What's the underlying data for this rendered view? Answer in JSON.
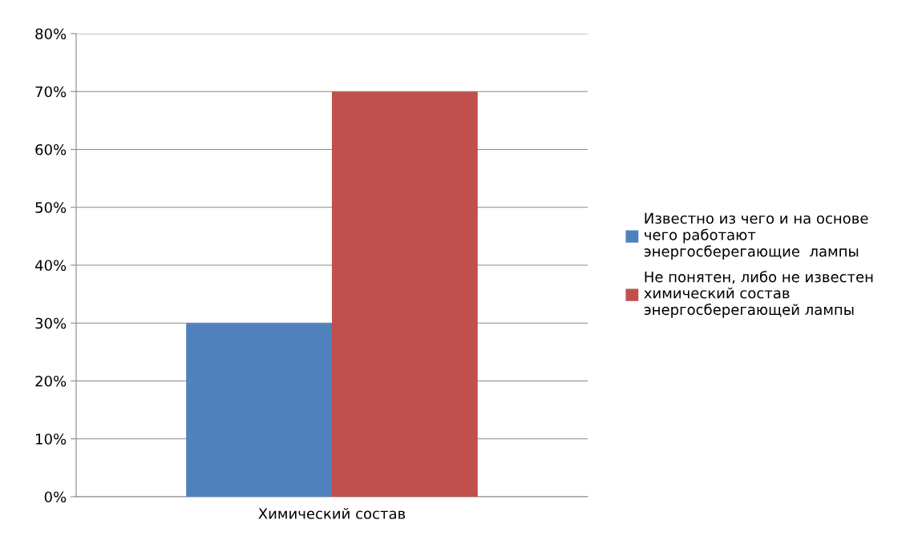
{
  "chart_data": {
    "type": "bar",
    "categories": [
      "Химический состав"
    ],
    "series": [
      {
        "name": "Известно из чего и на основе\nчего работают\nэнергосберегающие  лампы",
        "color": "#4f81bd",
        "values": [
          30
        ]
      },
      {
        "name": "Не понятен, либо не известен\nхимический состав\nэнергосберегающей лампы",
        "color": "#c0504d",
        "values": [
          70
        ]
      }
    ],
    "ylim": [
      0,
      80
    ],
    "yticks": [
      {
        "value": 0,
        "label": "0%"
      },
      {
        "value": 10,
        "label": "10%"
      },
      {
        "value": 20,
        "label": "20%"
      },
      {
        "value": 30,
        "label": "30%"
      },
      {
        "value": 40,
        "label": "40%"
      },
      {
        "value": 50,
        "label": "50%"
      },
      {
        "value": 60,
        "label": "60%"
      },
      {
        "value": 70,
        "label": "70%"
      },
      {
        "value": 80,
        "label": "80%"
      }
    ],
    "grid": "y",
    "legend": "right"
  }
}
